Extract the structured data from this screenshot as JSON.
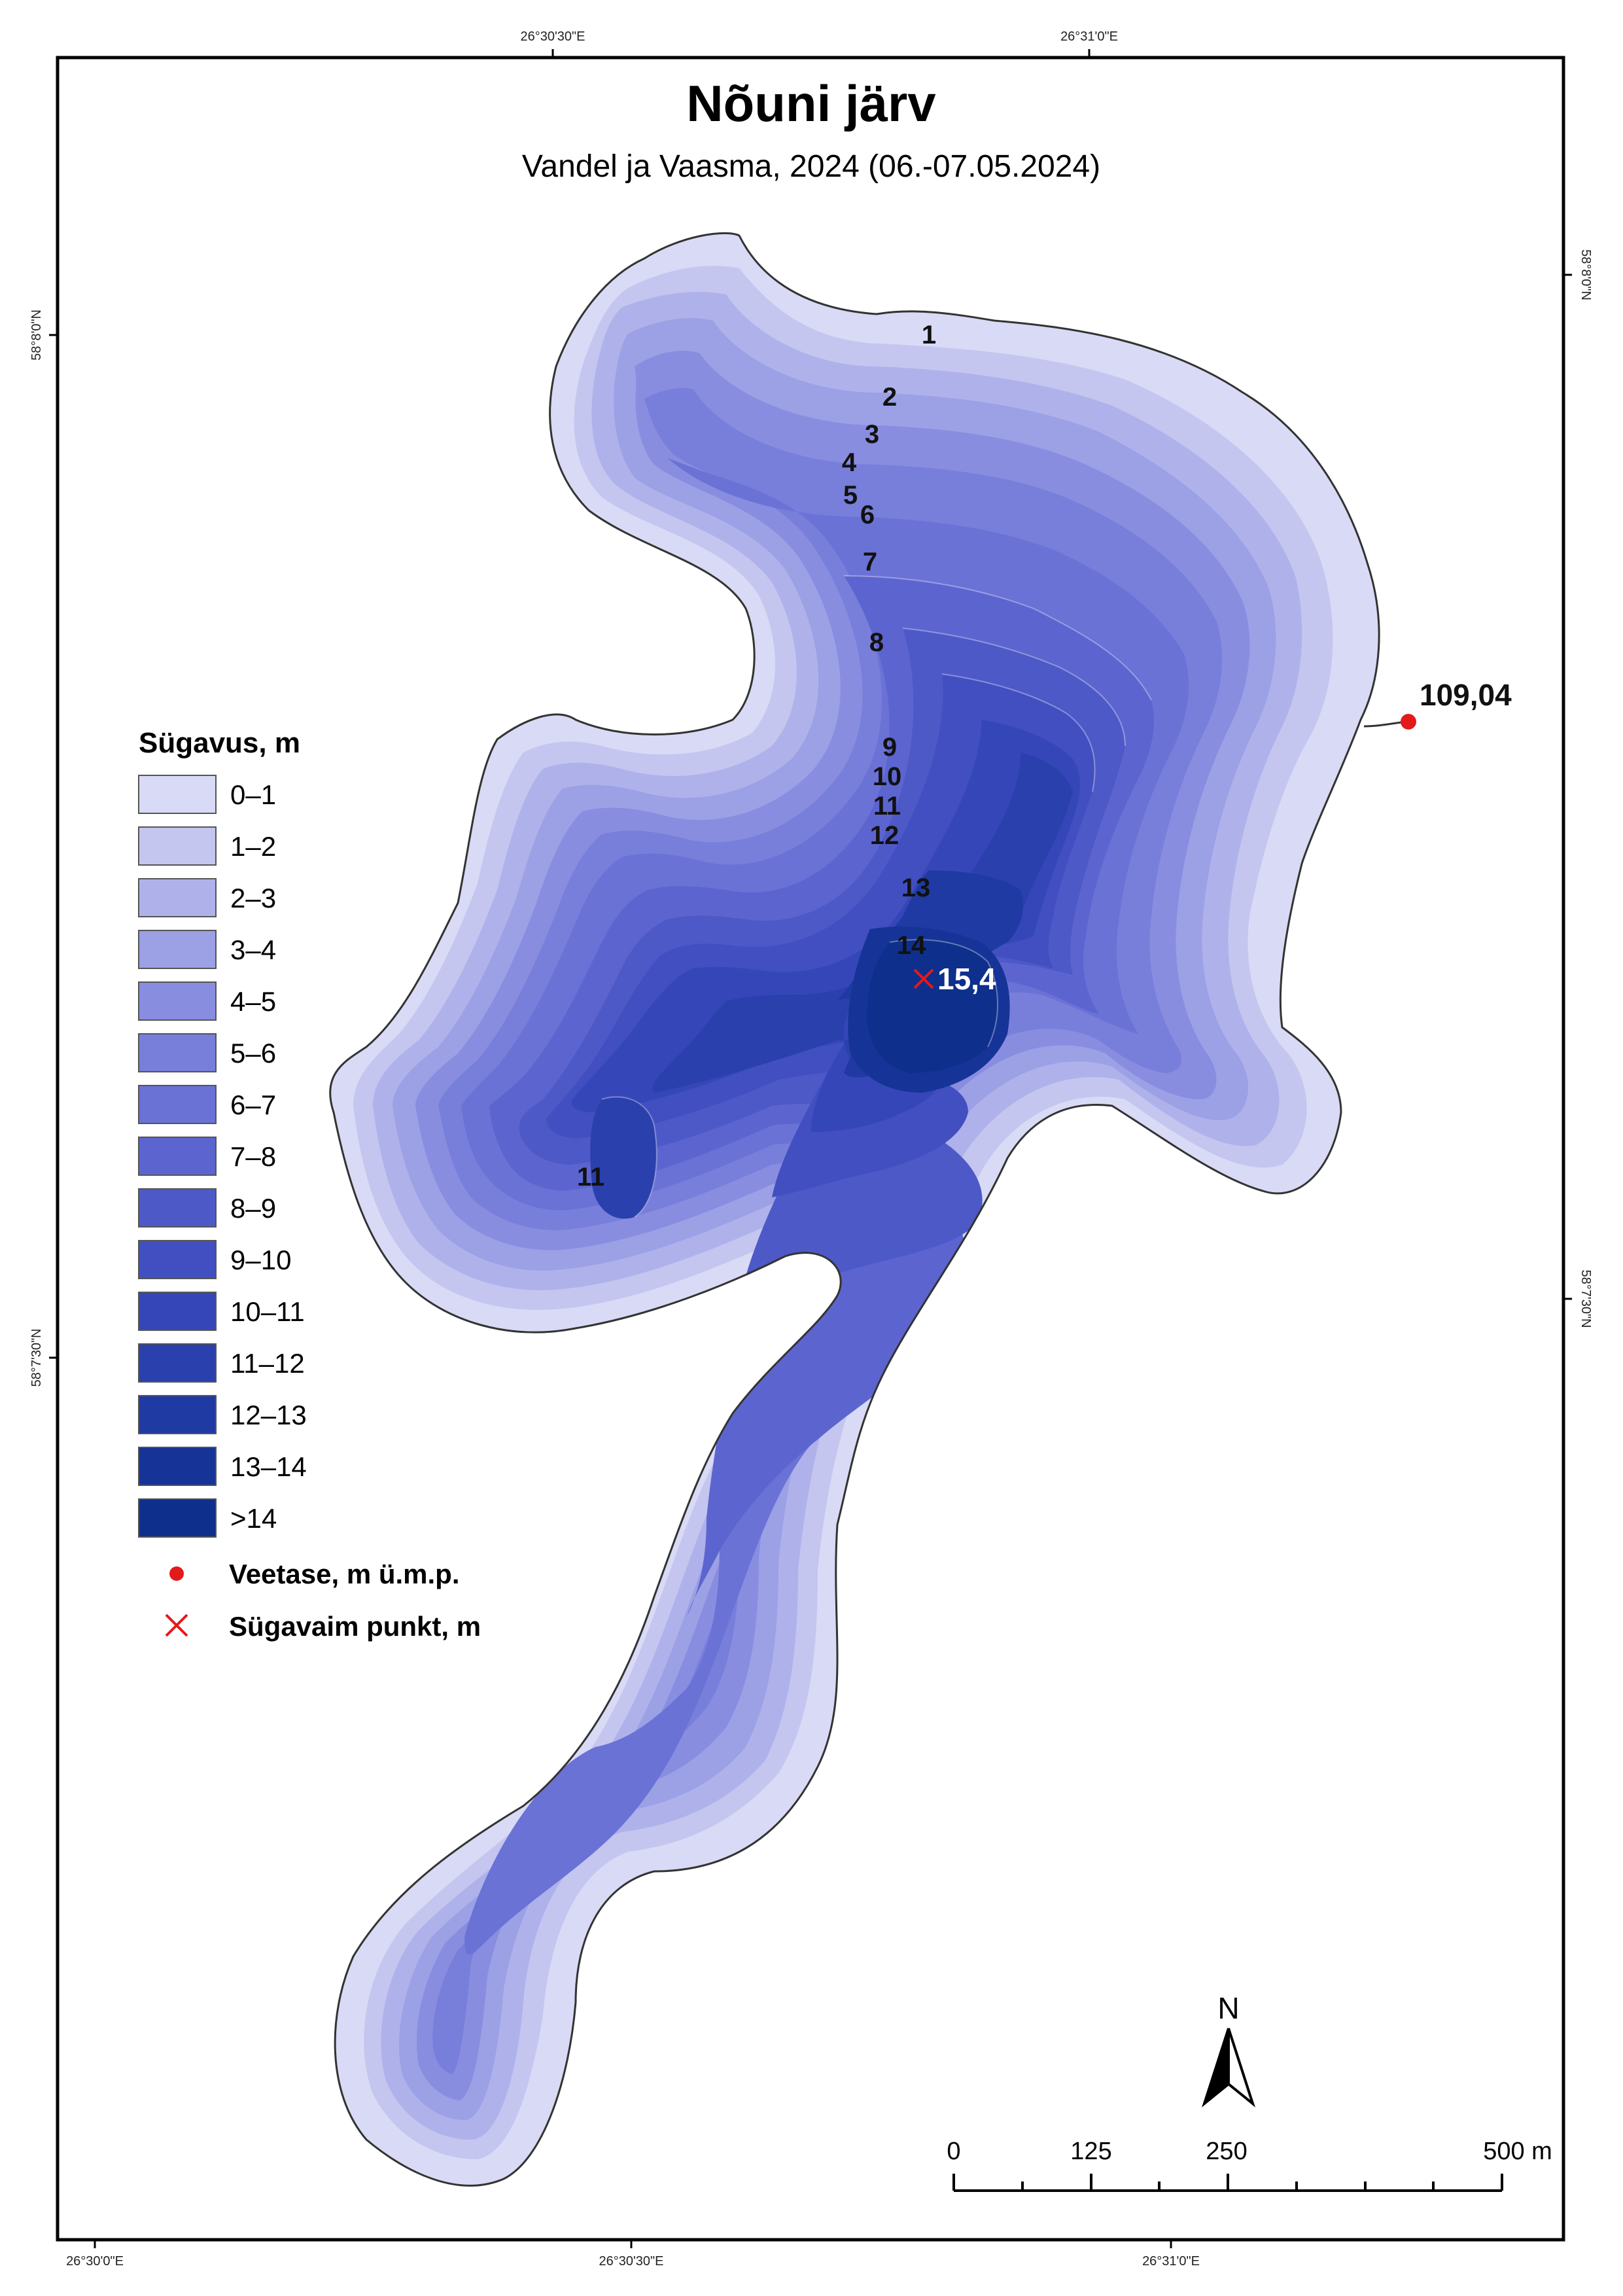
{
  "title": "Nõuni järv",
  "subtitle": "Vandel ja Vaasma, 2024 (06.-07.05.2024)",
  "coords": {
    "top": [
      "26°30'30\"E",
      "26°31'0\"E"
    ],
    "bottom": [
      "26°30'0\"E",
      "26°30'30\"E",
      "26°31'0\"E"
    ],
    "left": [
      "58°8'0\"N",
      "58°7'30\"N"
    ],
    "right": [
      "58°8'0\"N",
      "58°7'30\"N"
    ]
  },
  "contour_labels": [
    "1",
    "2",
    "3",
    "4",
    "5",
    "6",
    "7",
    "8",
    "9",
    "10",
    "11",
    "12",
    "13",
    "14",
    "11"
  ],
  "water_level": {
    "value": "109,04",
    "color": "#e31a1c"
  },
  "deepest_point": {
    "value": "15,4",
    "color": "#e31a1c"
  },
  "legend": {
    "title": "Sügavus, m",
    "classes": [
      {
        "label": "0–1",
        "color": "#d9daf5"
      },
      {
        "label": "1–2",
        "color": "#c4c6ef"
      },
      {
        "label": "2–3",
        "color": "#afb2ea"
      },
      {
        "label": "3–4",
        "color": "#9ca0e5"
      },
      {
        "label": "4–5",
        "color": "#898de0"
      },
      {
        "label": "5–6",
        "color": "#787fda"
      },
      {
        "label": "6–7",
        "color": "#6a72d6"
      },
      {
        "label": "7–8",
        "color": "#5c65cf"
      },
      {
        "label": "8–9",
        "color": "#4e59c8"
      },
      {
        "label": "9–10",
        "color": "#414fc0"
      },
      {
        "label": "10–11",
        "color": "#3547b8"
      },
      {
        "label": "11–12",
        "color": "#2a40ad"
      },
      {
        "label": "12–13",
        "color": "#1f3aa3"
      },
      {
        "label": "13–14",
        "color": "#163497"
      },
      {
        "label": ">14",
        "color": "#0e2f8c"
      }
    ],
    "symbols": [
      {
        "label": "Veetase, m ü.m.p.",
        "icon": "red-dot"
      },
      {
        "label": "Sügavaim punkt, m",
        "icon": "red-cross"
      }
    ]
  },
  "north_arrow": "N",
  "scale_bar": {
    "labels": [
      "0",
      "125",
      "250",
      "500 m"
    ]
  }
}
